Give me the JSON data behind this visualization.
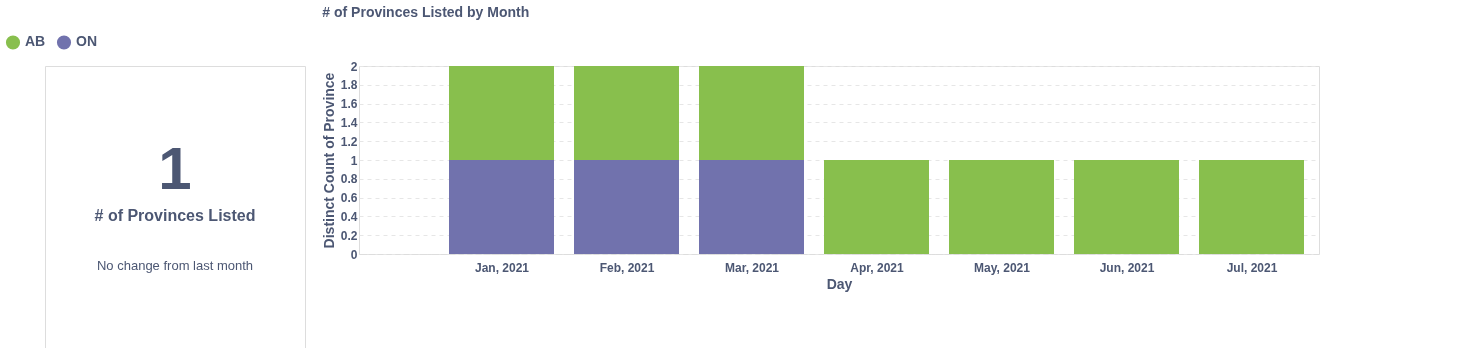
{
  "chart_data": [
    {
      "type": "other",
      "title": "# of Provinces Listed",
      "annotations": [
        "1",
        "No change from last month"
      ]
    },
    {
      "type": "bar",
      "title": "# of Provinces Listed by Month",
      "xlabel": "Day",
      "ylabel": "Distinct Count of Province",
      "categories": [
        "Jan, 2021",
        "Feb, 2021",
        "Mar, 2021",
        "Apr, 2021",
        "May, 2021",
        "Jun, 2021",
        "Jul, 2021"
      ],
      "stacked": true,
      "series": [
        {
          "name": "ON",
          "color": "#7172ad",
          "values": [
            1,
            1,
            1,
            null,
            null,
            null,
            null
          ]
        },
        {
          "name": "AB",
          "color": "#88bf4d",
          "values": [
            1,
            1,
            1,
            1,
            1,
            1,
            1
          ]
        }
      ],
      "ylim": [
        0,
        2
      ],
      "yticks": [
        0,
        0.2,
        0.4,
        0.6,
        0.8,
        1,
        1.2,
        1.4,
        1.6,
        1.8,
        2
      ],
      "grid": "y",
      "legend": "top left"
    }
  ]
}
